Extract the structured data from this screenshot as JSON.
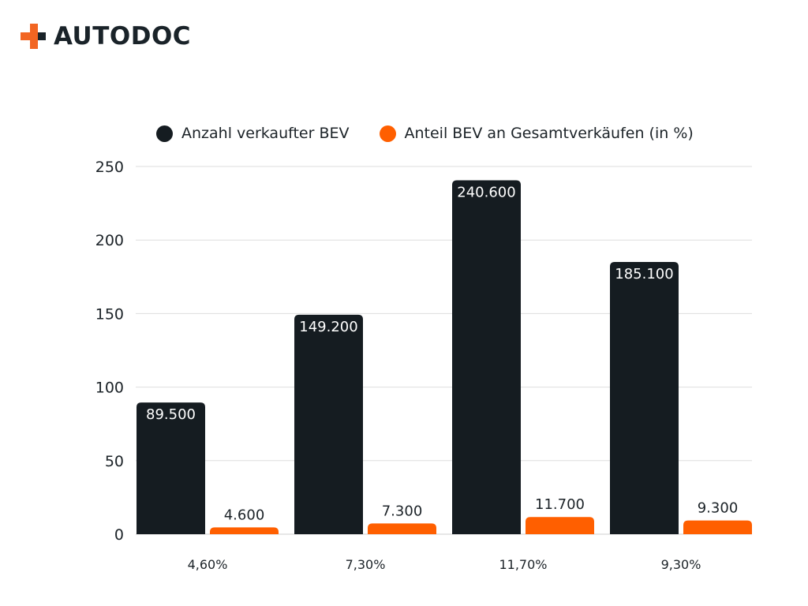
{
  "brand": {
    "name": "AUTODOC",
    "icon": "plus-logo-icon",
    "colors": {
      "orange": "#f26522",
      "dark": "#1a2329"
    }
  },
  "chart_data": {
    "type": "bar",
    "categories": [
      "4,60%",
      "7,30%",
      "11,70%",
      "9,30%"
    ],
    "series": [
      {
        "name": "Anzahl verkaufter BEV",
        "color": "#151c21",
        "values": [
          89.5,
          149.2,
          240.6,
          185.1
        ],
        "labels": [
          "89.500",
          "149.200",
          "240.600",
          "185.100"
        ]
      },
      {
        "name": "Anteil BEV an Gesamtverkäufen (in %)",
        "color": "#ff5f00",
        "values": [
          4.6,
          7.3,
          11.7,
          9.3
        ],
        "labels": [
          "4.600",
          "7.300",
          "11.700",
          "9.300"
        ]
      }
    ],
    "yticks": [
      "0",
      "50",
      "100",
      "150",
      "200",
      "250"
    ],
    "ylim": [
      0,
      250
    ],
    "grid": true,
    "legend": "top"
  }
}
